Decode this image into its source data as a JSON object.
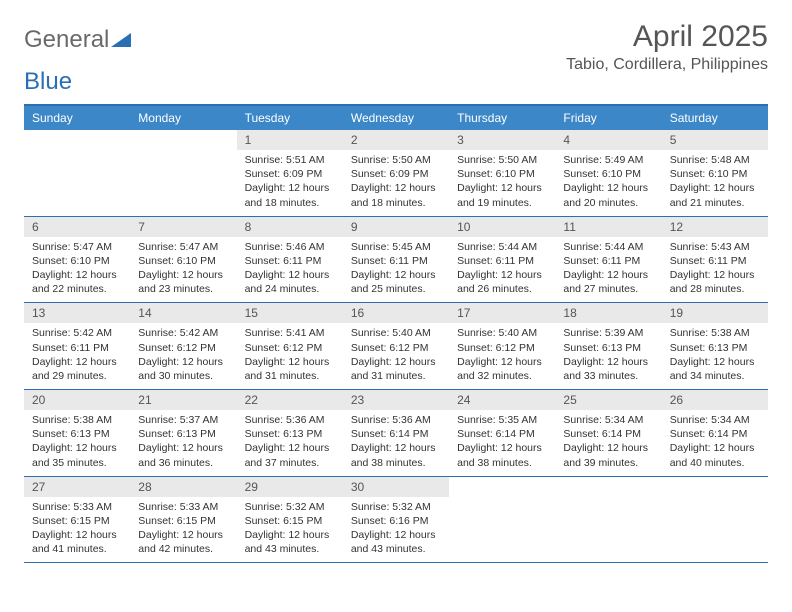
{
  "brand": {
    "part1": "General",
    "part2": "Blue"
  },
  "title": "April 2025",
  "location": "Tabio, Cordillera, Philippines",
  "colors": {
    "header_bg": "#3b87c8",
    "header_text": "#ffffff",
    "border": "#2a6fb5",
    "daynum_bg": "#e9e9e9",
    "text": "#333333",
    "title_text": "#555555",
    "page_bg": "#ffffff"
  },
  "day_names": [
    "Sunday",
    "Monday",
    "Tuesday",
    "Wednesday",
    "Thursday",
    "Friday",
    "Saturday"
  ],
  "weeks": [
    [
      null,
      null,
      {
        "n": "1",
        "sr": "Sunrise: 5:51 AM",
        "ss": "Sunset: 6:09 PM",
        "dl1": "Daylight: 12 hours",
        "dl2": "and 18 minutes."
      },
      {
        "n": "2",
        "sr": "Sunrise: 5:50 AM",
        "ss": "Sunset: 6:09 PM",
        "dl1": "Daylight: 12 hours",
        "dl2": "and 18 minutes."
      },
      {
        "n": "3",
        "sr": "Sunrise: 5:50 AM",
        "ss": "Sunset: 6:10 PM",
        "dl1": "Daylight: 12 hours",
        "dl2": "and 19 minutes."
      },
      {
        "n": "4",
        "sr": "Sunrise: 5:49 AM",
        "ss": "Sunset: 6:10 PM",
        "dl1": "Daylight: 12 hours",
        "dl2": "and 20 minutes."
      },
      {
        "n": "5",
        "sr": "Sunrise: 5:48 AM",
        "ss": "Sunset: 6:10 PM",
        "dl1": "Daylight: 12 hours",
        "dl2": "and 21 minutes."
      }
    ],
    [
      {
        "n": "6",
        "sr": "Sunrise: 5:47 AM",
        "ss": "Sunset: 6:10 PM",
        "dl1": "Daylight: 12 hours",
        "dl2": "and 22 minutes."
      },
      {
        "n": "7",
        "sr": "Sunrise: 5:47 AM",
        "ss": "Sunset: 6:10 PM",
        "dl1": "Daylight: 12 hours",
        "dl2": "and 23 minutes."
      },
      {
        "n": "8",
        "sr": "Sunrise: 5:46 AM",
        "ss": "Sunset: 6:11 PM",
        "dl1": "Daylight: 12 hours",
        "dl2": "and 24 minutes."
      },
      {
        "n": "9",
        "sr": "Sunrise: 5:45 AM",
        "ss": "Sunset: 6:11 PM",
        "dl1": "Daylight: 12 hours",
        "dl2": "and 25 minutes."
      },
      {
        "n": "10",
        "sr": "Sunrise: 5:44 AM",
        "ss": "Sunset: 6:11 PM",
        "dl1": "Daylight: 12 hours",
        "dl2": "and 26 minutes."
      },
      {
        "n": "11",
        "sr": "Sunrise: 5:44 AM",
        "ss": "Sunset: 6:11 PM",
        "dl1": "Daylight: 12 hours",
        "dl2": "and 27 minutes."
      },
      {
        "n": "12",
        "sr": "Sunrise: 5:43 AM",
        "ss": "Sunset: 6:11 PM",
        "dl1": "Daylight: 12 hours",
        "dl2": "and 28 minutes."
      }
    ],
    [
      {
        "n": "13",
        "sr": "Sunrise: 5:42 AM",
        "ss": "Sunset: 6:11 PM",
        "dl1": "Daylight: 12 hours",
        "dl2": "and 29 minutes."
      },
      {
        "n": "14",
        "sr": "Sunrise: 5:42 AM",
        "ss": "Sunset: 6:12 PM",
        "dl1": "Daylight: 12 hours",
        "dl2": "and 30 minutes."
      },
      {
        "n": "15",
        "sr": "Sunrise: 5:41 AM",
        "ss": "Sunset: 6:12 PM",
        "dl1": "Daylight: 12 hours",
        "dl2": "and 31 minutes."
      },
      {
        "n": "16",
        "sr": "Sunrise: 5:40 AM",
        "ss": "Sunset: 6:12 PM",
        "dl1": "Daylight: 12 hours",
        "dl2": "and 31 minutes."
      },
      {
        "n": "17",
        "sr": "Sunrise: 5:40 AM",
        "ss": "Sunset: 6:12 PM",
        "dl1": "Daylight: 12 hours",
        "dl2": "and 32 minutes."
      },
      {
        "n": "18",
        "sr": "Sunrise: 5:39 AM",
        "ss": "Sunset: 6:13 PM",
        "dl1": "Daylight: 12 hours",
        "dl2": "and 33 minutes."
      },
      {
        "n": "19",
        "sr": "Sunrise: 5:38 AM",
        "ss": "Sunset: 6:13 PM",
        "dl1": "Daylight: 12 hours",
        "dl2": "and 34 minutes."
      }
    ],
    [
      {
        "n": "20",
        "sr": "Sunrise: 5:38 AM",
        "ss": "Sunset: 6:13 PM",
        "dl1": "Daylight: 12 hours",
        "dl2": "and 35 minutes."
      },
      {
        "n": "21",
        "sr": "Sunrise: 5:37 AM",
        "ss": "Sunset: 6:13 PM",
        "dl1": "Daylight: 12 hours",
        "dl2": "and 36 minutes."
      },
      {
        "n": "22",
        "sr": "Sunrise: 5:36 AM",
        "ss": "Sunset: 6:13 PM",
        "dl1": "Daylight: 12 hours",
        "dl2": "and 37 minutes."
      },
      {
        "n": "23",
        "sr": "Sunrise: 5:36 AM",
        "ss": "Sunset: 6:14 PM",
        "dl1": "Daylight: 12 hours",
        "dl2": "and 38 minutes."
      },
      {
        "n": "24",
        "sr": "Sunrise: 5:35 AM",
        "ss": "Sunset: 6:14 PM",
        "dl1": "Daylight: 12 hours",
        "dl2": "and 38 minutes."
      },
      {
        "n": "25",
        "sr": "Sunrise: 5:34 AM",
        "ss": "Sunset: 6:14 PM",
        "dl1": "Daylight: 12 hours",
        "dl2": "and 39 minutes."
      },
      {
        "n": "26",
        "sr": "Sunrise: 5:34 AM",
        "ss": "Sunset: 6:14 PM",
        "dl1": "Daylight: 12 hours",
        "dl2": "and 40 minutes."
      }
    ],
    [
      {
        "n": "27",
        "sr": "Sunrise: 5:33 AM",
        "ss": "Sunset: 6:15 PM",
        "dl1": "Daylight: 12 hours",
        "dl2": "and 41 minutes."
      },
      {
        "n": "28",
        "sr": "Sunrise: 5:33 AM",
        "ss": "Sunset: 6:15 PM",
        "dl1": "Daylight: 12 hours",
        "dl2": "and 42 minutes."
      },
      {
        "n": "29",
        "sr": "Sunrise: 5:32 AM",
        "ss": "Sunset: 6:15 PM",
        "dl1": "Daylight: 12 hours",
        "dl2": "and 43 minutes."
      },
      {
        "n": "30",
        "sr": "Sunrise: 5:32 AM",
        "ss": "Sunset: 6:16 PM",
        "dl1": "Daylight: 12 hours",
        "dl2": "and 43 minutes."
      },
      null,
      null,
      null
    ]
  ]
}
